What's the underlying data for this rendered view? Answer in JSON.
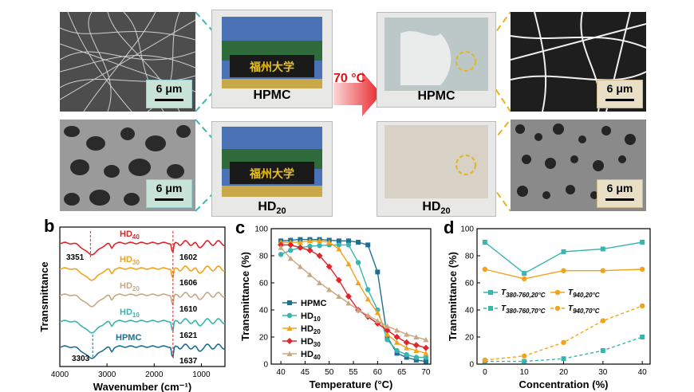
{
  "panel_a": {
    "scale_labels": [
      "6 μm",
      "6 μm",
      "6 μm",
      "6 μm"
    ],
    "photo_labels": {
      "hpmc_left": "HPMC",
      "hd20_left_main": "HD",
      "hd20_left_sub": "20",
      "hpmc_right": "HPMC",
      "hd20_right_main": "HD",
      "hd20_right_sub": "20"
    },
    "temperature_label": "70 °C",
    "colors": {
      "cyan_dash": "#3fb5b0",
      "gold_dash": "#e8b21c",
      "arrow": "#e8232a",
      "temp_text": "#e01010"
    }
  },
  "chart_data": [
    {
      "panel": "b",
      "type": "line",
      "xlabel": "Wavenumber (cm⁻¹)",
      "ylabel": "Transmittance",
      "xlim": [
        4000,
        500
      ],
      "xticks": [
        4000,
        3000,
        2000,
        1000
      ],
      "series": [
        {
          "name": "HD40",
          "label_main": "HD",
          "label_sub": "40",
          "color": "#e0262a"
        },
        {
          "name": "HD30",
          "label_main": "HD",
          "label_sub": "30",
          "color": "#f4a21a"
        },
        {
          "name": "HD20",
          "label_main": "HD",
          "label_sub": "20",
          "color": "#c8a882"
        },
        {
          "name": "HD10",
          "label_main": "HD",
          "label_sub": "10",
          "color": "#39b5b0"
        },
        {
          "name": "HPMC",
          "label_main": "HPMC",
          "label_sub": "",
          "color": "#1f6f94"
        }
      ],
      "annotations": {
        "top_left": "3351",
        "bottom_left": "3303",
        "right_labels": [
          "1602",
          "1606",
          "1610",
          "1621",
          "1637"
        ]
      }
    },
    {
      "panel": "c",
      "type": "line",
      "xlabel": "Temperature (°C)",
      "ylabel": "Transmittance (%)",
      "xlim": [
        38,
        71
      ],
      "ylim": [
        0,
        100
      ],
      "xticks": [
        40,
        45,
        50,
        55,
        60,
        65,
        70
      ],
      "yticks": [
        0,
        20,
        40,
        60,
        80,
        100
      ],
      "x": [
        40,
        42,
        44,
        46,
        48,
        50,
        52,
        54,
        56,
        58,
        60,
        62,
        64,
        66,
        68,
        70
      ],
      "series": [
        {
          "name": "HPMC",
          "label_main": "HPMC",
          "label_sub": "",
          "color": "#1f6f94",
          "values": [
            91,
            91.5,
            92,
            92,
            92,
            91.5,
            91,
            91,
            90,
            88,
            68,
            20,
            8,
            5,
            3,
            2
          ]
        },
        {
          "name": "HD10",
          "label_main": "HD",
          "label_sub": "10",
          "color": "#39b5b0",
          "values": [
            81,
            84,
            86,
            87,
            87.5,
            88,
            88,
            88,
            75,
            55,
            40,
            18,
            10,
            7,
            5,
            5
          ]
        },
        {
          "name": "HD20",
          "label_main": "HD",
          "label_sub": "20",
          "color": "#f4a21a",
          "values": [
            90,
            90,
            90,
            91,
            91,
            90,
            85,
            74,
            60,
            48,
            38,
            22,
            16,
            12,
            10,
            8
          ]
        },
        {
          "name": "HD30",
          "label_main": "HD",
          "label_sub": "30",
          "color": "#e0262a",
          "values": [
            88,
            88,
            86,
            84,
            80,
            72,
            62,
            50,
            40,
            35,
            30,
            25,
            20,
            16,
            14,
            12
          ]
        },
        {
          "name": "HD40",
          "label_main": "HD",
          "label_sub": "40",
          "color": "#c8a882",
          "values": [
            86,
            78,
            72,
            66,
            60,
            55,
            50,
            45,
            40,
            36,
            32,
            28,
            25,
            22,
            20,
            18
          ]
        }
      ]
    },
    {
      "panel": "d",
      "type": "line",
      "xlabel": "Concentration (%)",
      "ylabel": "Transmittance (%)",
      "xlim": [
        -2,
        42
      ],
      "ylim": [
        0,
        100
      ],
      "xticks": [
        0,
        10,
        20,
        30,
        40
      ],
      "yticks": [
        0,
        20,
        40,
        60,
        80,
        100
      ],
      "x": [
        0,
        10,
        20,
        30,
        40
      ],
      "series": [
        {
          "name": "T380-760,20°C",
          "label_main": "T",
          "label_sub": "380-760,20°C",
          "color": "#39b5b0",
          "dashed": false,
          "values": [
            90,
            67,
            83,
            85,
            90
          ]
        },
        {
          "name": "T940,20°C",
          "label_main": "T",
          "label_sub": "940,20°C",
          "color": "#f4a21a",
          "dashed": false,
          "values": [
            70,
            63,
            69,
            69,
            70
          ]
        },
        {
          "name": "T380-760,70°C",
          "label_main": "T",
          "label_sub": "380-760,70°C",
          "color": "#39b5b0",
          "dashed": true,
          "values": [
            2,
            2,
            4,
            10,
            20
          ]
        },
        {
          "name": "T940,70°C",
          "label_main": "T",
          "label_sub": "940,70°C",
          "color": "#f4a21a",
          "dashed": true,
          "values": [
            3,
            6,
            16,
            32,
            43
          ]
        }
      ]
    }
  ],
  "panel_letters": [
    "b",
    "c",
    "d"
  ]
}
